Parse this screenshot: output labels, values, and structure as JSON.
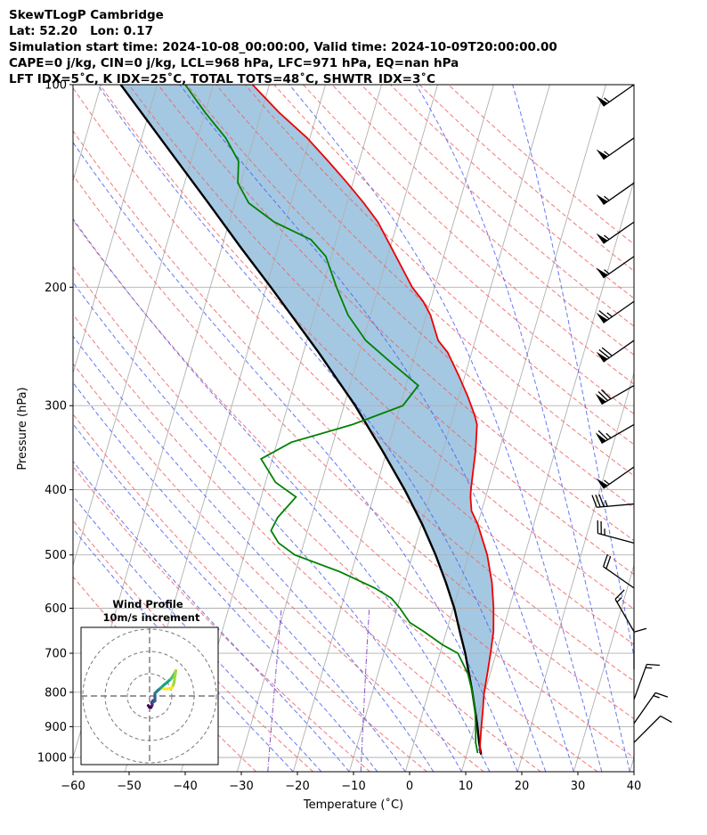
{
  "header": {
    "line1": "SkewTLogP Cambridge",
    "line2": "Lat: 52.20   Lon: 0.17",
    "line3": "Simulation start time: 2024-10-08_00:00:00, Valid time: 2024-10-09T20:00:00.00",
    "line4": "CAPE=0 j/kg, CIN=0 j/kg, LCL=968 hPa, LFC=971 hPa, EQ=nan hPa",
    "line5": "LFT IDX=5˚C, K IDX=25˚C, TOTAL TOTS=48˚C, SHWTR_IDX=3˚C"
  },
  "chart_data": {
    "type": "skewt",
    "xlabel": "Temperature (˚C)",
    "ylabel": "Pressure (hPa)",
    "x_ticks": [
      -60,
      -50,
      -40,
      -30,
      -20,
      -10,
      0,
      10,
      20,
      30,
      40
    ],
    "x_tick_labels": [
      "−60",
      "−50",
      "−40",
      "−30",
      "−20",
      "−10",
      "0",
      "10",
      "20",
      "30",
      "40"
    ],
    "y_ticks": [
      1000,
      900,
      800,
      700,
      600,
      500,
      400,
      300,
      200,
      100
    ],
    "xlim": [
      -60,
      40
    ],
    "ylim": [
      1050,
      100
    ],
    "log_pressure": true,
    "grid": true,
    "colors": {
      "temperature": "#ee0000",
      "dewpoint": "#008000",
      "parcel": "#000000",
      "fill": "#9fc5e0",
      "dry_adiabat": "#f06060",
      "moist_adiabat": "#4b62ee",
      "mixing_ratio": "#8040c0",
      "isotherm": "#b0b0b0",
      "isobar": "#b0b0b0"
    },
    "temperature": [
      {
        "p": 985,
        "t": 12.3
      },
      {
        "p": 950,
        "t": 11.8
      },
      {
        "p": 900,
        "t": 11.2
      },
      {
        "p": 850,
        "t": 10.6
      },
      {
        "p": 800,
        "t": 9.9
      },
      {
        "p": 750,
        "t": 9.5
      },
      {
        "p": 700,
        "t": 9.0
      },
      {
        "p": 650,
        "t": 8.4
      },
      {
        "p": 600,
        "t": 7.2
      },
      {
        "p": 550,
        "t": 5.6
      },
      {
        "p": 500,
        "t": 3.3
      },
      {
        "p": 450,
        "t": 0.0
      },
      {
        "p": 430,
        "t": -1.8
      },
      {
        "p": 410,
        "t": -2.7
      },
      {
        "p": 400,
        "t": -3.0
      },
      {
        "p": 350,
        "t": -4.2
      },
      {
        "p": 320,
        "t": -5.3
      },
      {
        "p": 310,
        "t": -6.2
      },
      {
        "p": 290,
        "t": -8.5
      },
      {
        "p": 270,
        "t": -11.2
      },
      {
        "p": 250,
        "t": -14.3
      },
      {
        "p": 240,
        "t": -16.6
      },
      {
        "p": 220,
        "t": -19.3
      },
      {
        "p": 210,
        "t": -21.3
      },
      {
        "p": 200,
        "t": -24.0
      },
      {
        "p": 180,
        "t": -28.5
      },
      {
        "p": 160,
        "t": -33.5
      },
      {
        "p": 150,
        "t": -37.0
      },
      {
        "p": 140,
        "t": -41.0
      },
      {
        "p": 130,
        "t": -45.5
      },
      {
        "p": 120,
        "t": -50.5
      },
      {
        "p": 110,
        "t": -56.8
      },
      {
        "p": 100,
        "t": -63.0
      }
    ],
    "dewpoint": [
      {
        "p": 985,
        "t": 11.9
      },
      {
        "p": 950,
        "t": 11.0
      },
      {
        "p": 900,
        "t": 10.2
      },
      {
        "p": 850,
        "t": 9.2
      },
      {
        "p": 800,
        "t": 7.8
      },
      {
        "p": 750,
        "t": 6.0
      },
      {
        "p": 700,
        "t": 3.2
      },
      {
        "p": 680,
        "t": 0.0
      },
      {
        "p": 650,
        "t": -4.0
      },
      {
        "p": 630,
        "t": -7.0
      },
      {
        "p": 600,
        "t": -9.5
      },
      {
        "p": 580,
        "t": -11.5
      },
      {
        "p": 560,
        "t": -15.0
      },
      {
        "p": 530,
        "t": -22.0
      },
      {
        "p": 500,
        "t": -31.0
      },
      {
        "p": 480,
        "t": -34.5
      },
      {
        "p": 460,
        "t": -36.5
      },
      {
        "p": 440,
        "t": -36.0
      },
      {
        "p": 410,
        "t": -33.8
      },
      {
        "p": 390,
        "t": -38.2
      },
      {
        "p": 360,
        "t": -42.0
      },
      {
        "p": 340,
        "t": -37.5
      },
      {
        "p": 320,
        "t": -27.5
      },
      {
        "p": 300,
        "t": -19.5
      },
      {
        "p": 280,
        "t": -17.8
      },
      {
        "p": 260,
        "t": -23.5
      },
      {
        "p": 240,
        "t": -29.5
      },
      {
        "p": 220,
        "t": -34.0
      },
      {
        "p": 200,
        "t": -37.5
      },
      {
        "p": 180,
        "t": -41.0
      },
      {
        "p": 170,
        "t": -44.5
      },
      {
        "p": 160,
        "t": -52.0
      },
      {
        "p": 150,
        "t": -57.5
      },
      {
        "p": 140,
        "t": -60.5
      },
      {
        "p": 130,
        "t": -61.5
      },
      {
        "p": 120,
        "t": -65.0
      },
      {
        "p": 110,
        "t": -70.0
      },
      {
        "p": 100,
        "t": -75.0
      }
    ],
    "parcel": [
      {
        "p": 990,
        "t": 12.6
      },
      {
        "p": 950,
        "t": 11.6
      },
      {
        "p": 900,
        "t": 10.5
      },
      {
        "p": 850,
        "t": 9.2
      },
      {
        "p": 800,
        "t": 7.8
      },
      {
        "p": 750,
        "t": 6.2
      },
      {
        "p": 700,
        "t": 4.5
      },
      {
        "p": 650,
        "t": 2.4
      },
      {
        "p": 600,
        "t": 0.2
      },
      {
        "p": 550,
        "t": -2.6
      },
      {
        "p": 500,
        "t": -5.9
      },
      {
        "p": 450,
        "t": -9.9
      },
      {
        "p": 400,
        "t": -14.8
      },
      {
        "p": 350,
        "t": -20.8
      },
      {
        "p": 300,
        "t": -28.0
      },
      {
        "p": 250,
        "t": -37.3
      },
      {
        "p": 200,
        "t": -49.2
      },
      {
        "p": 175,
        "t": -56.5
      },
      {
        "p": 150,
        "t": -64.7
      },
      {
        "p": 125,
        "t": -74.5
      },
      {
        "p": 100,
        "t": -86.5
      }
    ],
    "wind_barbs": [
      {
        "p": 100,
        "dir": 235,
        "speed": 55
      },
      {
        "p": 120,
        "dir": 235,
        "speed": 55
      },
      {
        "p": 140,
        "dir": 235,
        "speed": 55
      },
      {
        "p": 160,
        "dir": 235,
        "speed": 55
      },
      {
        "p": 180,
        "dir": 235,
        "speed": 55
      },
      {
        "p": 210,
        "dir": 235,
        "speed": 65
      },
      {
        "p": 240,
        "dir": 235,
        "speed": 70
      },
      {
        "p": 280,
        "dir": 240,
        "speed": 70
      },
      {
        "p": 320,
        "dir": 240,
        "speed": 65
      },
      {
        "p": 370,
        "dir": 235,
        "speed": 55
      },
      {
        "p": 420,
        "dir": 265,
        "speed": 35
      },
      {
        "p": 480,
        "dir": 285,
        "speed": 25
      },
      {
        "p": 560,
        "dir": 305,
        "speed": 20
      },
      {
        "p": 650,
        "dir": 330,
        "speed": 15
      },
      {
        "p": 740,
        "dir": 360,
        "speed": 10
      },
      {
        "p": 820,
        "dir": 20,
        "speed": 15
      },
      {
        "p": 890,
        "dir": 35,
        "speed": 15
      },
      {
        "p": 950,
        "dir": 45,
        "speed": 10
      }
    ],
    "hodograph": {
      "title": "Wind Profile",
      "subtitle": "10m/s increment",
      "ring_increment_ms": 10,
      "colormap": "viridis",
      "points": [
        {
          "u": -0.6,
          "v": -4.3
        },
        {
          "u": -0.1,
          "v": -5.0
        },
        {
          "u": 0.6,
          "v": -5.2
        },
        {
          "u": 1.2,
          "v": -4.0
        },
        {
          "u": 1.0,
          "v": -3.0
        },
        {
          "u": 1.5,
          "v": -2.1
        },
        {
          "u": 1.7,
          "v": -2.7
        },
        {
          "u": 2.4,
          "v": -2.2
        },
        {
          "u": 2.4,
          "v": -1.0
        },
        {
          "u": 2.4,
          "v": 1.2
        },
        {
          "u": 3.6,
          "v": 2.4
        },
        {
          "u": 5.0,
          "v": 3.6
        },
        {
          "u": 6.5,
          "v": 5.0
        },
        {
          "u": 8.0,
          "v": 6.2
        },
        {
          "u": 9.5,
          "v": 7.6
        },
        {
          "u": 10.5,
          "v": 9.0
        },
        {
          "u": 11.3,
          "v": 10.3
        },
        {
          "u": 11.8,
          "v": 11.3
        },
        {
          "u": 11.3,
          "v": 8.5
        },
        {
          "u": 11.0,
          "v": 6.0
        },
        {
          "u": 10.2,
          "v": 3.8
        },
        {
          "u": 8.3,
          "v": 3.2
        },
        {
          "u": 6.3,
          "v": 3.2
        }
      ]
    }
  }
}
